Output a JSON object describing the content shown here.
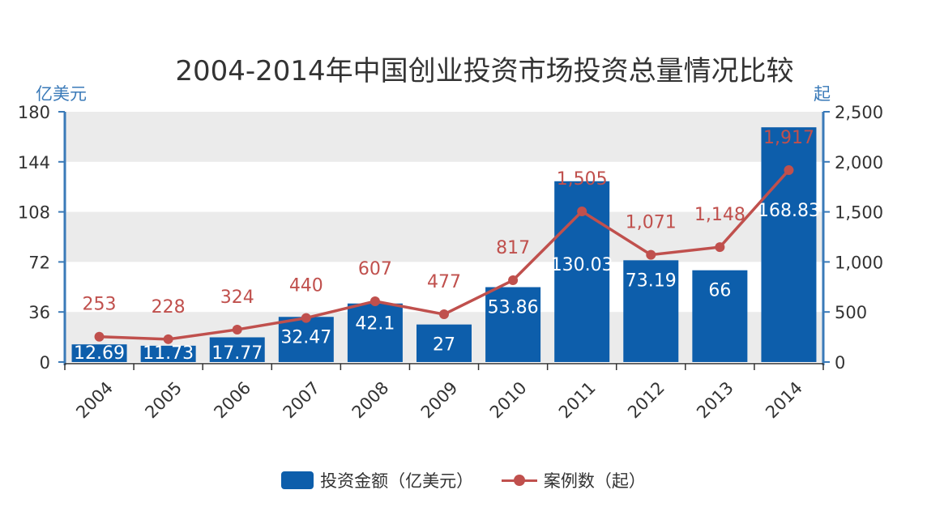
{
  "chart_data": {
    "type": "bar+line",
    "title": "2004-2014年中国创业投资市场投资总量情况比较",
    "categories": [
      "2004",
      "2005",
      "2006",
      "2007",
      "2008",
      "2009",
      "2010",
      "2011",
      "2012",
      "2013",
      "2014"
    ],
    "series": [
      {
        "name": "投资金额（亿美元）",
        "type": "bar",
        "axis": "left",
        "color": "#0d5eab",
        "values": [
          12.69,
          11.73,
          17.77,
          32.47,
          42.1,
          27,
          53.86,
          130.03,
          73.19,
          66,
          168.83
        ],
        "labels": [
          "12.69",
          "11.73",
          "17.77",
          "32.47",
          "42.1",
          "27",
          "53.86",
          "130.03",
          "73.19",
          "66",
          "168.83"
        ]
      },
      {
        "name": "案例数（起）",
        "type": "line",
        "axis": "right",
        "color": "#c0504d",
        "values": [
          253,
          228,
          324,
          440,
          607,
          477,
          817,
          1505,
          1071,
          1148,
          1917
        ],
        "labels": [
          "253",
          "228",
          "324",
          "440",
          "607",
          "477",
          "817",
          "1,505",
          "1,071",
          "1,148",
          "1,917"
        ]
      }
    ],
    "left_axis": {
      "label": "亿美元",
      "ylim": [
        0,
        180
      ],
      "ticks": [
        0,
        36,
        72,
        108,
        144,
        180
      ],
      "tick_labels": [
        "0",
        "36",
        "72",
        "108",
        "144",
        "180"
      ]
    },
    "right_axis": {
      "label": "起",
      "ylim": [
        0,
        2500
      ],
      "ticks": [
        0,
        500,
        1000,
        1500,
        2000,
        2500
      ],
      "tick_labels": [
        "0",
        "500",
        "1,000",
        "1,500",
        "2,000",
        "2,500"
      ]
    },
    "legend_position": "bottom",
    "grid": "alternating horizontal bands",
    "axis_color": "#3a7ab8",
    "band_color": "#ebebeb"
  }
}
